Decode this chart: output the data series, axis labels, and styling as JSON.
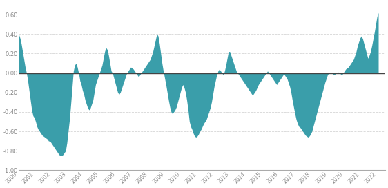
{
  "fill_color": "#3a9eaa",
  "background_color": "#ffffff",
  "grid_color": "#cccccc",
  "tick_color": "#888888",
  "ylim": [
    -1.0,
    0.72
  ],
  "yticks": [
    -1.0,
    -0.8,
    -0.6,
    -0.4,
    -0.2,
    0.0,
    0.2,
    0.4,
    0.6
  ],
  "ytick_labels": [
    "-1.00",
    "-0.80",
    "-0.60",
    "-0.40",
    "-0.20",
    "0.00",
    "0.20",
    "0.40",
    "0.60"
  ],
  "corr": [
    0.4,
    0.36,
    0.3,
    0.22,
    0.14,
    0.06,
    0.0,
    -0.08,
    -0.18,
    -0.28,
    -0.38,
    -0.44,
    -0.46,
    -0.5,
    -0.55,
    -0.58,
    -0.6,
    -0.62,
    -0.64,
    -0.65,
    -0.66,
    -0.67,
    -0.68,
    -0.7,
    -0.7,
    -0.72,
    -0.74,
    -0.76,
    -0.78,
    -0.8,
    -0.82,
    -0.84,
    -0.85,
    -0.85,
    -0.84,
    -0.82,
    -0.8,
    -0.72,
    -0.6,
    -0.48,
    -0.32,
    -0.15,
    0.02,
    0.08,
    0.1,
    0.06,
    0.0,
    -0.08,
    -0.12,
    -0.18,
    -0.22,
    -0.28,
    -0.32,
    -0.36,
    -0.38,
    -0.36,
    -0.32,
    -0.28,
    -0.2,
    -0.12,
    -0.08,
    -0.04,
    0.0,
    0.04,
    0.08,
    0.15,
    0.22,
    0.26,
    0.24,
    0.18,
    0.1,
    0.02,
    0.0,
    -0.05,
    -0.1,
    -0.15,
    -0.2,
    -0.22,
    -0.2,
    -0.16,
    -0.12,
    -0.08,
    -0.04,
    0.0,
    0.02,
    0.04,
    0.06,
    0.05,
    0.04,
    0.02,
    0.0,
    -0.02,
    -0.04,
    -0.02,
    0.0,
    0.02,
    0.04,
    0.06,
    0.08,
    0.1,
    0.12,
    0.14,
    0.18,
    0.22,
    0.28,
    0.34,
    0.4,
    0.38,
    0.3,
    0.2,
    0.1,
    0.02,
    -0.05,
    -0.12,
    -0.2,
    -0.28,
    -0.35,
    -0.4,
    -0.42,
    -0.4,
    -0.38,
    -0.35,
    -0.3,
    -0.25,
    -0.2,
    -0.15,
    -0.12,
    -0.15,
    -0.2,
    -0.28,
    -0.38,
    -0.5,
    -0.55,
    -0.58,
    -0.62,
    -0.65,
    -0.66,
    -0.65,
    -0.63,
    -0.6,
    -0.58,
    -0.55,
    -0.52,
    -0.5,
    -0.48,
    -0.44,
    -0.4,
    -0.36,
    -0.3,
    -0.22,
    -0.14,
    -0.08,
    -0.02,
    0.02,
    0.04,
    0.02,
    0.0,
    -0.02,
    0.02,
    0.08,
    0.15,
    0.22,
    0.22,
    0.18,
    0.14,
    0.1,
    0.06,
    0.02,
    0.0,
    -0.02,
    -0.04,
    -0.06,
    -0.08,
    -0.1,
    -0.12,
    -0.14,
    -0.16,
    -0.18,
    -0.2,
    -0.22,
    -0.22,
    -0.2,
    -0.18,
    -0.15,
    -0.12,
    -0.1,
    -0.08,
    -0.06,
    -0.04,
    -0.02,
    0.0,
    0.02,
    0.0,
    -0.02,
    -0.04,
    -0.06,
    -0.08,
    -0.1,
    -0.12,
    -0.1,
    -0.08,
    -0.06,
    -0.04,
    -0.02,
    -0.02,
    -0.04,
    -0.06,
    -0.1,
    -0.14,
    -0.2,
    -0.28,
    -0.35,
    -0.42,
    -0.48,
    -0.52,
    -0.55,
    -0.56,
    -0.58,
    -0.6,
    -0.62,
    -0.64,
    -0.65,
    -0.66,
    -0.65,
    -0.63,
    -0.6,
    -0.55,
    -0.5,
    -0.45,
    -0.4,
    -0.35,
    -0.3,
    -0.25,
    -0.2,
    -0.15,
    -0.1,
    -0.06,
    -0.02,
    0.0,
    0.0,
    0.0,
    -0.01,
    -0.02,
    -0.01,
    0.0,
    0.01,
    0.0,
    -0.01,
    -0.02,
    0.0,
    0.02,
    0.04,
    0.05,
    0.06,
    0.08,
    0.1,
    0.12,
    0.14,
    0.18,
    0.22,
    0.28,
    0.32,
    0.36,
    0.38,
    0.35,
    0.3,
    0.25,
    0.2,
    0.15,
    0.18,
    0.22,
    0.28,
    0.35,
    0.42,
    0.5,
    0.58,
    0.62
  ]
}
